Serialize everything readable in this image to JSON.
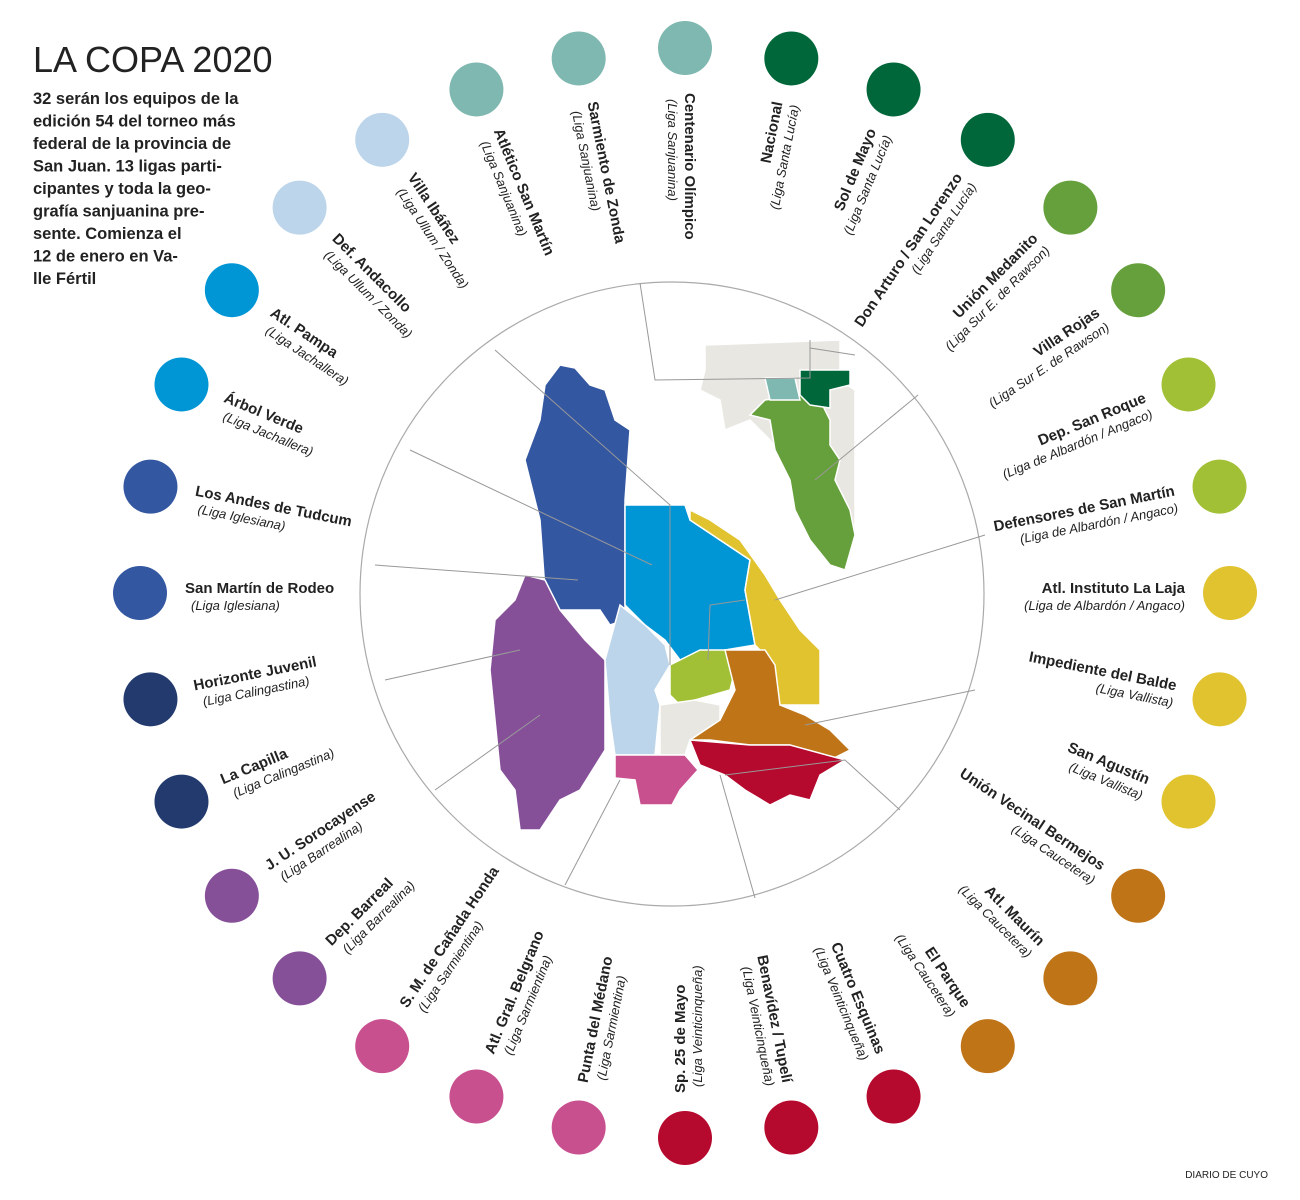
{
  "header": {
    "title": "LA COPA 2020",
    "intro": [
      "32 serán los equipos de la",
      "edición 54 del torneo más",
      "federal de la provincia de",
      "San Juan. 13  ligas parti-",
      "cipantes y toda la geo-",
      "grafía sanjuanina pre-",
      "sente. Comienza el",
      "12 de enero en Va-",
      "lle Fértil"
    ]
  },
  "teams": [
    {
      "name": "Centenario Olímpico",
      "league": "(Liga Sanjuanina)",
      "color": "#7fb8b0"
    },
    {
      "name": "Nacional",
      "league": "(Liga Santa Lucía)",
      "color": "#00673a"
    },
    {
      "name": "Sol de Mayo",
      "league": "(Liga Santa Lucía)",
      "color": "#00673a"
    },
    {
      "name": "Don Arturo / San Lorenzo",
      "league": "(Liga Santa Lucía)",
      "color": "#00673a"
    },
    {
      "name": "Unión Medanito",
      "league": "(Liga Sur E. de Rawson)",
      "color": "#66a03c"
    },
    {
      "name": "Villa Rojas",
      "league": "(Liga Sur E. de Rawson)",
      "color": "#66a03c"
    },
    {
      "name": "Dep. San Roque",
      "league": "(Liga de Albardón / Angaco)",
      "color": "#a2c036"
    },
    {
      "name": "Defensores de San Martín",
      "league": "(Liga de Albardón / Angaco)",
      "color": "#a2c036"
    },
    {
      "name": "Atl. Instituto La Laja",
      "league": "(Liga de Albardón / Angaco)",
      "color": "#e0c32e"
    },
    {
      "name": "Impediente del Balde",
      "league": "(Liga Vallista)",
      "color": "#e0c32e"
    },
    {
      "name": "San Agustín",
      "league": "(Liga Vallista)",
      "color": "#e0c32e"
    },
    {
      "name": "Unión Vecinal Bermejos",
      "league": "(Liga Caucetera)",
      "color": "#bf7418"
    },
    {
      "name": "Atl. Maurín",
      "league": "(Liga Caucetera)",
      "color": "#bf7418"
    },
    {
      "name": "El Parque",
      "league": "(Liga Caucetera)",
      "color": "#bf7418"
    },
    {
      "name": "Cuatro Esquinas",
      "league": "(Liga Veinticinqueña)",
      "color": "#b5092e"
    },
    {
      "name": "Benavídez / Tupelí",
      "league": "(Liga Veinticinqueña)",
      "color": "#b5092e"
    },
    {
      "name": "Sp. 25 de Mayo",
      "league": "(Liga Veinticinqueña)",
      "color": "#b5092e"
    },
    {
      "name": "Punta del Médano",
      "league": "(Liga Sarmientina)",
      "color": "#c8508f"
    },
    {
      "name": "Atl. Gral. Belgrano",
      "league": "(Liga Sarmientina)",
      "color": "#c8508f"
    },
    {
      "name": "S. M. de Cañada Honda",
      "league": "(Liga Sarmientina)",
      "color": "#c8508f"
    },
    {
      "name": "Dep. Barreal",
      "league": "(Liga Barrealina)",
      "color": "#865099"
    },
    {
      "name": "J. U. Sorocayense",
      "league": "(Liga Barrealina)",
      "color": "#865099"
    },
    {
      "name": "La Capilla",
      "league": "(Liga Calingastina)",
      "color": "#233a6e"
    },
    {
      "name": "Horizonte Juvenil",
      "league": "(Liga Calingastina)",
      "color": "#233a6e"
    },
    {
      "name": "San Martín de Rodeo",
      "league": "(Liga Iglesiana)",
      "color": "#3457a1"
    },
    {
      "name": "Los Andes de Tudcum",
      "league": "(Liga Iglesiana)",
      "color": "#3457a1"
    },
    {
      "name": "Árbol Verde",
      "league": "(Liga Jachallera)",
      "color": "#0095d4"
    },
    {
      "name": "Atl. Pampa",
      "league": "(Liga Jachallera)",
      "color": "#0095d4"
    },
    {
      "name": "Def. Andacollo",
      "league": "(Liga Ullum / Zonda)",
      "color": "#bcd5ea"
    },
    {
      "name": "Villa Ibáñez",
      "league": "(Liga Ullum / Zonda)",
      "color": "#bcd5ea"
    },
    {
      "name": "Atlético San Martín",
      "league": "(Liga Sanjuanina)",
      "color": "#7fb8b0"
    },
    {
      "name": "Sarmiento de Zonda",
      "league": "(Liga Sanjuanina)",
      "color": "#7fb8b0"
    }
  ],
  "credit": "DIARIO DE CUYO"
}
